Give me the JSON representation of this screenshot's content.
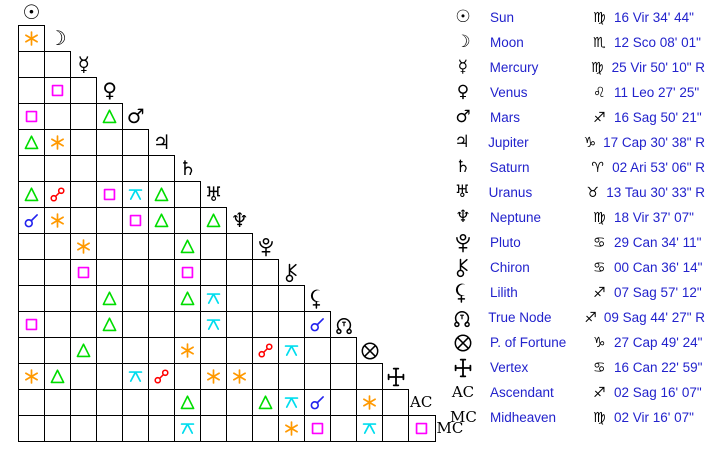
{
  "colors": {
    "background": "#FFFFFF",
    "grid_line": "#000000",
    "glyph": "#000000",
    "legend_text": "#2222CC"
  },
  "aspect_colors": {
    "conjunction": "#2222EE",
    "sextile": "#FF9900",
    "square": "#FF00FF",
    "trine": "#00DD00",
    "opposition": "#FF0000",
    "quincunx": "#00DDEE"
  },
  "chart_data": {
    "type": "table",
    "kind": "natal-aspect-grid-with-positions",
    "points": [
      {
        "name": "Sun",
        "icon": "sun-icon",
        "sign_icon": "virgo-icon",
        "position": "16 Vir 34' 44\""
      },
      {
        "name": "Moon",
        "icon": "moon-icon",
        "sign_icon": "scorpio-icon",
        "position": "12 Sco 08' 01\""
      },
      {
        "name": "Mercury",
        "icon": "mercury-icon",
        "sign_icon": "virgo-icon",
        "position": "25 Vir 50' 10\" R"
      },
      {
        "name": "Venus",
        "icon": "venus-icon",
        "sign_icon": "leo-icon",
        "position": "11 Leo 27' 25\""
      },
      {
        "name": "Mars",
        "icon": "mars-icon",
        "sign_icon": "sagittarius-icon",
        "position": "16 Sag 50' 21\""
      },
      {
        "name": "Jupiter",
        "icon": "jupiter-icon",
        "sign_icon": "capricorn-icon",
        "position": "17 Cap 30' 38\" R"
      },
      {
        "name": "Saturn",
        "icon": "saturn-icon",
        "sign_icon": "aries-icon",
        "position": "02 Ari 53' 06\" R"
      },
      {
        "name": "Uranus",
        "icon": "uranus-icon",
        "sign_icon": "taurus-icon",
        "position": "13 Tau 30' 33\" R"
      },
      {
        "name": "Neptune",
        "icon": "neptune-icon",
        "sign_icon": "virgo-icon",
        "position": "18 Vir 37' 07\""
      },
      {
        "name": "Pluto",
        "icon": "pluto-icon",
        "sign_icon": "cancer-icon",
        "position": "29 Can 34' 11\""
      },
      {
        "name": "Chiron",
        "icon": "chiron-icon",
        "sign_icon": "cancer-icon",
        "position": "00 Can 36' 14\""
      },
      {
        "name": "Lilith",
        "icon": "lilith-icon",
        "sign_icon": "sagittarius-icon",
        "position": "07 Sag 57' 12\""
      },
      {
        "name": "True Node",
        "icon": "true-node-icon",
        "sign_icon": "sagittarius-icon",
        "position": "09 Sag 44' 27\" R"
      },
      {
        "name": "P. of Fortune",
        "icon": "fortune-icon",
        "sign_icon": "capricorn-icon",
        "position": "27 Cap 49' 24\""
      },
      {
        "name": "Vertex",
        "icon": "vertex-icon",
        "sign_icon": "cancer-icon",
        "position": "16 Can 22' 59\""
      },
      {
        "name": "Ascendant",
        "icon_text": "AC",
        "sign_icon": "sagittarius-icon",
        "position": "02 Sag 16' 07\""
      },
      {
        "name": "Midheaven",
        "icon_text": "MC",
        "sign_icon": "virgo-icon",
        "position": "02 Vir 16' 07\""
      }
    ],
    "aspects": [
      {
        "row": 2,
        "col": 1,
        "type": "sextile"
      },
      {
        "row": 4,
        "col": 2,
        "type": "square"
      },
      {
        "row": 5,
        "col": 1,
        "type": "square"
      },
      {
        "row": 5,
        "col": 4,
        "type": "trine"
      },
      {
        "row": 6,
        "col": 1,
        "type": "trine"
      },
      {
        "row": 6,
        "col": 2,
        "type": "sextile"
      },
      {
        "row": 8,
        "col": 1,
        "type": "trine"
      },
      {
        "row": 8,
        "col": 2,
        "type": "opposition"
      },
      {
        "row": 8,
        "col": 4,
        "type": "square"
      },
      {
        "row": 8,
        "col": 5,
        "type": "quincunx"
      },
      {
        "row": 8,
        "col": 6,
        "type": "trine"
      },
      {
        "row": 9,
        "col": 1,
        "type": "conjunction"
      },
      {
        "row": 9,
        "col": 2,
        "type": "sextile"
      },
      {
        "row": 9,
        "col": 5,
        "type": "square"
      },
      {
        "row": 9,
        "col": 6,
        "type": "trine"
      },
      {
        "row": 9,
        "col": 8,
        "type": "trine"
      },
      {
        "row": 10,
        "col": 3,
        "type": "sextile"
      },
      {
        "row": 10,
        "col": 7,
        "type": "trine"
      },
      {
        "row": 11,
        "col": 3,
        "type": "square"
      },
      {
        "row": 11,
        "col": 7,
        "type": "square"
      },
      {
        "row": 12,
        "col": 4,
        "type": "trine"
      },
      {
        "row": 12,
        "col": 7,
        "type": "trine"
      },
      {
        "row": 12,
        "col": 8,
        "type": "quincunx"
      },
      {
        "row": 13,
        "col": 1,
        "type": "square"
      },
      {
        "row": 13,
        "col": 4,
        "type": "trine"
      },
      {
        "row": 13,
        "col": 8,
        "type": "quincunx"
      },
      {
        "row": 13,
        "col": 12,
        "type": "conjunction"
      },
      {
        "row": 14,
        "col": 3,
        "type": "trine"
      },
      {
        "row": 14,
        "col": 7,
        "type": "sextile"
      },
      {
        "row": 14,
        "col": 10,
        "type": "opposition"
      },
      {
        "row": 14,
        "col": 11,
        "type": "quincunx"
      },
      {
        "row": 15,
        "col": 1,
        "type": "sextile"
      },
      {
        "row": 15,
        "col": 2,
        "type": "trine"
      },
      {
        "row": 15,
        "col": 5,
        "type": "quincunx"
      },
      {
        "row": 15,
        "col": 6,
        "type": "opposition"
      },
      {
        "row": 15,
        "col": 8,
        "type": "sextile"
      },
      {
        "row": 15,
        "col": 9,
        "type": "sextile"
      },
      {
        "row": 16,
        "col": 7,
        "type": "trine"
      },
      {
        "row": 16,
        "col": 10,
        "type": "trine"
      },
      {
        "row": 16,
        "col": 11,
        "type": "quincunx"
      },
      {
        "row": 16,
        "col": 12,
        "type": "conjunction"
      },
      {
        "row": 16,
        "col": 14,
        "type": "sextile"
      },
      {
        "row": 17,
        "col": 7,
        "type": "quincunx"
      },
      {
        "row": 17,
        "col": 11,
        "type": "sextile"
      },
      {
        "row": 17,
        "col": 12,
        "type": "square"
      },
      {
        "row": 17,
        "col": 14,
        "type": "quincunx"
      },
      {
        "row": 17,
        "col": 16,
        "type": "square"
      }
    ]
  }
}
